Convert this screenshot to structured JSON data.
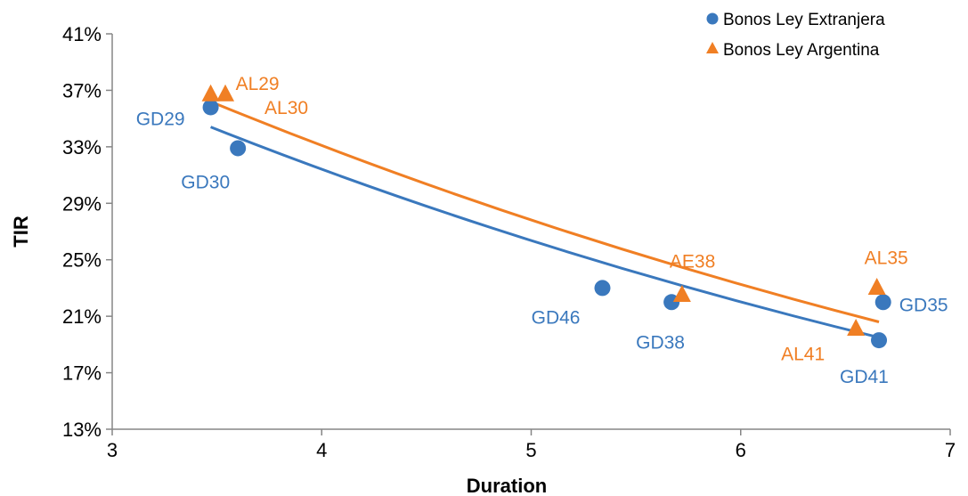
{
  "chart_data": {
    "type": "scatter",
    "title": "",
    "xlabel": "Duration",
    "ylabel": "TIR",
    "xlim": [
      3,
      7
    ],
    "ylim": [
      13,
      41
    ],
    "x_ticks": [
      3,
      4,
      5,
      6,
      7
    ],
    "y_ticks": [
      13,
      17,
      21,
      25,
      29,
      33,
      37,
      41
    ],
    "y_tick_format": "percent",
    "grid": false,
    "legend_position": "top-right",
    "series": [
      {
        "name": "Bonos Ley Extranjera",
        "marker": "circle",
        "color": "#3A78BD",
        "points": [
          {
            "label": "GD29",
            "x": 3.47,
            "y": 35.8
          },
          {
            "label": "GD30",
            "x": 3.6,
            "y": 32.9
          },
          {
            "label": "GD46",
            "x": 5.34,
            "y": 23.0
          },
          {
            "label": "GD38",
            "x": 5.67,
            "y": 22.0
          },
          {
            "label": "GD35",
            "x": 6.68,
            "y": 22.0
          },
          {
            "label": "GD41",
            "x": 6.66,
            "y": 19.3
          }
        ],
        "trendline": {
          "x": [
            3.47,
            6.66
          ],
          "y": [
            34.4,
            19.5
          ]
        }
      },
      {
        "name": "Bonos Ley Argentina",
        "marker": "triangle",
        "color": "#F07F24",
        "points": [
          {
            "label": "AL29",
            "x": 3.47,
            "y": 36.7
          },
          {
            "label": "AL30",
            "x": 3.54,
            "y": 36.7
          },
          {
            "label": "AE38",
            "x": 5.72,
            "y": 22.5
          },
          {
            "label": "AL35",
            "x": 6.65,
            "y": 23.0
          },
          {
            "label": "AL41",
            "x": 6.55,
            "y": 20.1
          }
        ],
        "trendline": {
          "x": [
            3.47,
            6.66
          ],
          "y": [
            36.2,
            20.6
          ]
        }
      }
    ]
  }
}
